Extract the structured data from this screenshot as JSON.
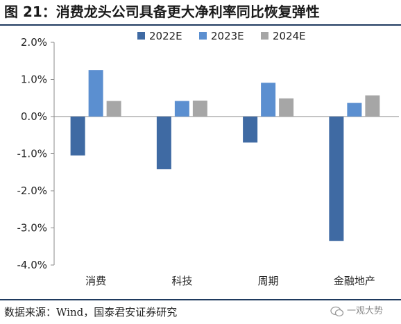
{
  "title": "图 21：消费龙头公司具备更大净利率同比恢复弹性",
  "source": "数据来源：Wind，国泰君安证券研究",
  "watermark": "一观大势",
  "colors": {
    "series_2022E": "#3f6aa3",
    "series_2023E": "#5b8fd0",
    "series_2024E": "#a6a6a6",
    "rule": "#1f3a5f",
    "axis": "#888888"
  },
  "chart_data": {
    "type": "bar",
    "categories": [
      "消费",
      "科技",
      "周期",
      "金融地产"
    ],
    "series": [
      {
        "name": "2022E",
        "values": [
          -1.05,
          -1.42,
          -0.7,
          -3.35
        ]
      },
      {
        "name": "2023E",
        "values": [
          1.25,
          0.42,
          0.91,
          0.37
        ]
      },
      {
        "name": "2024E",
        "values": [
          0.42,
          0.43,
          0.49,
          0.57
        ]
      }
    ],
    "ylim": [
      -4.0,
      2.0
    ],
    "yticks": [
      "2.0%",
      "1.0%",
      "0.0%",
      "-1.0%",
      "-2.0%",
      "-3.0%",
      "-4.0%"
    ],
    "ytick_values": [
      2.0,
      1.0,
      0.0,
      -1.0,
      -2.0,
      -3.0,
      -4.0
    ],
    "legend_position": "top-center",
    "grid": false
  }
}
